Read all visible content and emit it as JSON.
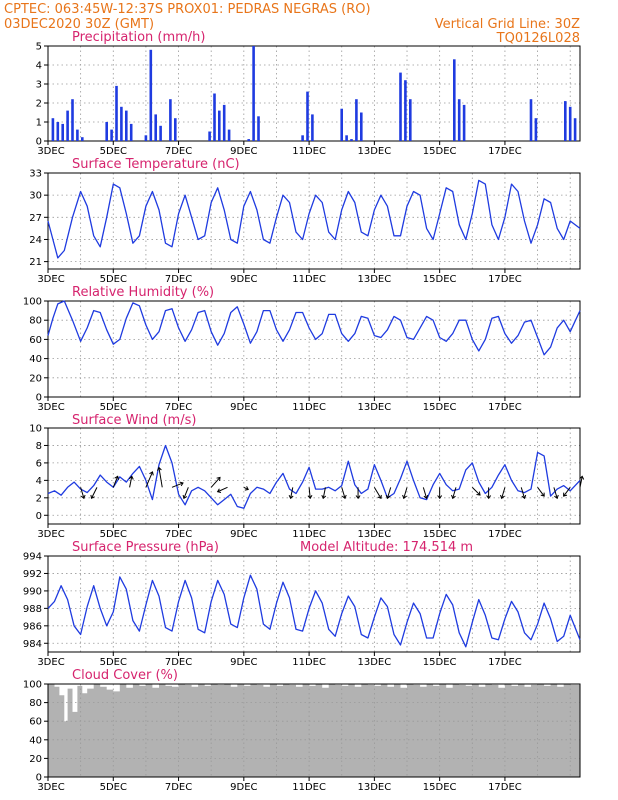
{
  "header": {
    "line1_left": "CPTEC:  063:45W-12:37S  PROX01: PEDRAS NEGRAS (RO)",
    "line2_left": "03DEC2020 30Z (GMT)",
    "line2_right": "Vertical Grid Line: 30Z",
    "line3_right": "TQ0126L028"
  },
  "colors": {
    "header": "#e8751a",
    "panel_title": "#d6246e",
    "series": "#1f3be0",
    "cloud": "#b2b2b2",
    "grid": "#999999"
  },
  "x_axis": {
    "start_label": "3DEC",
    "tick_labels": [
      "3DEC",
      "5DEC",
      "7DEC",
      "9DEC",
      "11DEC",
      "13DEC",
      "15DEC",
      "17DEC"
    ],
    "days_range": [
      0,
      16.3
    ]
  },
  "chart_data": [
    {
      "id": "precip",
      "type": "bar",
      "title": "Precipitation (mm/h)",
      "ylim": [
        0,
        5
      ],
      "yticks": [
        0,
        1,
        2,
        3,
        4,
        5
      ],
      "grid": true,
      "days": [
        0.15,
        0.3,
        0.45,
        0.6,
        0.75,
        0.9,
        1.05,
        1.2,
        1.35,
        1.5,
        1.65,
        1.8,
        1.95,
        2.1,
        2.25,
        2.4,
        2.55,
        2.7,
        2.85,
        3.0,
        3.15,
        3.3,
        3.45,
        3.6,
        3.75,
        3.9,
        4.05,
        4.2,
        4.35,
        4.5,
        4.65,
        4.8,
        4.95,
        5.1,
        5.25,
        5.4,
        5.55,
        5.7,
        5.85,
        6.0,
        6.15,
        6.3,
        6.45,
        6.6,
        6.75,
        6.9,
        7.05,
        7.2,
        7.35,
        7.5,
        7.65,
        7.8,
        7.95,
        8.1,
        8.25,
        8.4,
        8.55,
        8.7,
        8.85,
        9.0,
        9.15,
        9.3,
        9.45,
        9.6,
        9.75,
        9.9,
        10.05,
        10.2,
        10.35,
        10.5,
        10.65,
        10.8,
        10.95,
        11.1,
        11.25,
        11.4,
        11.55,
        11.7,
        11.85,
        12.0,
        12.15,
        12.3,
        12.45,
        12.6,
        12.75,
        12.9,
        13.05,
        13.2,
        13.35,
        13.5,
        13.65,
        13.8,
        13.95,
        14.1,
        14.25,
        14.4,
        14.55,
        14.65,
        14.8,
        14.95,
        15.1,
        15.25,
        15.4,
        15.55,
        15.7,
        15.85,
        16.0,
        16.15
      ],
      "values": [
        1.2,
        1.0,
        0.9,
        1.6,
        2.2,
        0.6,
        0.2,
        0,
        0,
        0,
        0,
        1.0,
        0.6,
        2.9,
        1.8,
        1.6,
        0.9,
        0,
        0,
        0.3,
        4.8,
        1.4,
        0.8,
        0,
        2.2,
        1.2,
        0,
        0,
        0,
        0,
        0,
        0,
        0.5,
        2.5,
        1.6,
        1.9,
        0.6,
        0,
        0,
        0,
        0.1,
        5.0,
        1.3,
        0,
        0,
        0,
        0,
        0,
        0,
        0,
        0,
        0.3,
        2.6,
        1.4,
        0,
        0,
        0,
        0,
        0,
        1.7,
        0.3,
        0.1,
        2.2,
        1.5,
        0,
        0,
        0,
        0,
        0,
        0,
        0,
        3.6,
        3.2,
        2.2,
        0,
        0,
        0,
        0,
        0,
        0,
        0,
        0,
        4.3,
        2.2,
        1.9,
        0,
        0,
        0,
        0,
        0,
        0,
        0,
        0,
        0,
        0,
        0,
        0,
        0,
        2.2,
        1.2,
        0,
        0,
        0,
        0,
        0,
        2.1,
        1.8,
        1.2
      ]
    },
    {
      "id": "temp",
      "type": "line",
      "title": "Surface Temperature (nC)",
      "ylim": [
        20,
        33
      ],
      "yticks": [
        21,
        24,
        27,
        30,
        33
      ],
      "grid": true,
      "days": [
        0,
        0.15,
        0.3,
        0.5,
        0.75,
        1.0,
        1.2,
        1.4,
        1.6,
        1.8,
        2.0,
        2.2,
        2.4,
        2.6,
        2.8,
        3.0,
        3.2,
        3.4,
        3.6,
        3.8,
        4.0,
        4.2,
        4.4,
        4.6,
        4.8,
        5.0,
        5.2,
        5.4,
        5.6,
        5.8,
        6.0,
        6.2,
        6.4,
        6.6,
        6.8,
        7.0,
        7.2,
        7.4,
        7.6,
        7.8,
        8.0,
        8.2,
        8.4,
        8.6,
        8.8,
        9.0,
        9.2,
        9.4,
        9.6,
        9.8,
        10.0,
        10.2,
        10.4,
        10.6,
        10.8,
        11.0,
        11.2,
        11.4,
        11.6,
        11.8,
        12.0,
        12.2,
        12.4,
        12.6,
        12.8,
        13.0,
        13.2,
        13.4,
        13.6,
        13.8,
        14.0,
        14.2,
        14.4,
        14.6,
        14.8,
        15.0,
        15.2,
        15.4,
        15.6,
        15.8,
        16.0,
        16.3
      ],
      "values": [
        26.5,
        24.0,
        21.5,
        22.5,
        27.0,
        30.5,
        28.5,
        24.5,
        23.0,
        27.0,
        31.5,
        31.0,
        27.5,
        23.5,
        24.5,
        28.5,
        30.5,
        28.0,
        23.5,
        23.0,
        27.5,
        30.0,
        27.0,
        24.0,
        24.5,
        29.0,
        31.0,
        28.0,
        24.0,
        23.5,
        28.5,
        30.5,
        28.0,
        24.0,
        23.5,
        27.0,
        30.0,
        29.0,
        25.0,
        24.0,
        27.5,
        30.0,
        29.0,
        25.0,
        24.0,
        28.0,
        30.5,
        29.0,
        25.0,
        24.5,
        28.0,
        30.0,
        28.5,
        24.5,
        24.5,
        28.5,
        30.5,
        30.0,
        25.5,
        24.0,
        27.5,
        31.0,
        30.5,
        26.0,
        24.0,
        27.5,
        32.0,
        31.5,
        26.0,
        24.0,
        27.0,
        31.5,
        30.5,
        26.5,
        23.5,
        26.0,
        29.5,
        29.0,
        25.5,
        24.0,
        26.5,
        25.5
      ]
    },
    {
      "id": "rh",
      "type": "line",
      "title": "Relative Humidity (%)",
      "ylim": [
        0,
        100
      ],
      "yticks": [
        0,
        20,
        40,
        60,
        80,
        100
      ],
      "grid": true,
      "days": [
        0,
        0.15,
        0.3,
        0.5,
        0.75,
        1.0,
        1.2,
        1.4,
        1.6,
        1.8,
        2.0,
        2.2,
        2.4,
        2.6,
        2.8,
        3.0,
        3.2,
        3.4,
        3.6,
        3.8,
        4.0,
        4.2,
        4.4,
        4.6,
        4.8,
        5.0,
        5.2,
        5.4,
        5.6,
        5.8,
        6.0,
        6.2,
        6.4,
        6.6,
        6.8,
        7.0,
        7.2,
        7.4,
        7.6,
        7.8,
        8.0,
        8.2,
        8.4,
        8.6,
        8.8,
        9.0,
        9.2,
        9.4,
        9.6,
        9.8,
        10.0,
        10.2,
        10.4,
        10.6,
        10.8,
        11.0,
        11.2,
        11.4,
        11.6,
        11.8,
        12.0,
        12.2,
        12.4,
        12.6,
        12.8,
        13.0,
        13.2,
        13.4,
        13.6,
        13.8,
        14.0,
        14.2,
        14.4,
        14.6,
        14.8,
        15.0,
        15.2,
        15.4,
        15.6,
        15.8,
        16.0,
        16.3
      ],
      "values": [
        64,
        82,
        97,
        100,
        80,
        58,
        72,
        90,
        88,
        70,
        55,
        60,
        82,
        98,
        95,
        75,
        60,
        68,
        90,
        92,
        72,
        58,
        70,
        88,
        90,
        68,
        54,
        66,
        88,
        94,
        76,
        56,
        68,
        90,
        90,
        70,
        58,
        70,
        88,
        88,
        72,
        60,
        66,
        86,
        86,
        66,
        58,
        66,
        84,
        82,
        64,
        62,
        70,
        84,
        80,
        62,
        60,
        72,
        84,
        80,
        62,
        58,
        66,
        80,
        80,
        60,
        48,
        60,
        82,
        84,
        66,
        56,
        64,
        78,
        80,
        62,
        44,
        52,
        72,
        80,
        68,
        90
      ]
    },
    {
      "id": "wind",
      "type": "line",
      "title": "Surface Wind (m/s)",
      "ylim": [
        -1,
        10
      ],
      "yticks": [
        0,
        2,
        4,
        6,
        8,
        10
      ],
      "grid": true,
      "days": [
        0,
        0.2,
        0.4,
        0.6,
        0.8,
        1.0,
        1.2,
        1.4,
        1.6,
        1.8,
        2.0,
        2.2,
        2.4,
        2.6,
        2.8,
        3.0,
        3.2,
        3.4,
        3.6,
        3.8,
        4.0,
        4.2,
        4.4,
        4.6,
        4.8,
        5.0,
        5.2,
        5.4,
        5.6,
        5.8,
        6.0,
        6.2,
        6.4,
        6.6,
        6.8,
        7.0,
        7.2,
        7.4,
        7.6,
        7.8,
        8.0,
        8.2,
        8.4,
        8.6,
        8.8,
        9.0,
        9.2,
        9.4,
        9.6,
        9.8,
        10.0,
        10.2,
        10.4,
        10.6,
        10.8,
        11.0,
        11.2,
        11.4,
        11.6,
        11.8,
        12.0,
        12.2,
        12.4,
        12.6,
        12.8,
        13.0,
        13.2,
        13.4,
        13.6,
        13.8,
        14.0,
        14.2,
        14.4,
        14.6,
        14.8,
        15.0,
        15.2,
        15.4,
        15.6,
        15.8,
        16.0,
        16.3
      ],
      "values": [
        2.5,
        2.8,
        2.3,
        3.2,
        3.8,
        3.0,
        2.6,
        3.4,
        4.6,
        3.8,
        3.2,
        4.4,
        3.8,
        4.8,
        5.6,
        4.0,
        1.8,
        5.8,
        8.0,
        6.0,
        2.4,
        1.2,
        2.8,
        3.2,
        2.8,
        2.0,
        1.2,
        1.8,
        2.4,
        1.0,
        0.8,
        2.5,
        3.2,
        3.0,
        2.5,
        3.8,
        4.8,
        3.0,
        2.5,
        3.8,
        5.5,
        3.0,
        3.0,
        3.2,
        2.8,
        3.4,
        6.2,
        3.5,
        2.5,
        3.0,
        5.8,
        4.0,
        2.0,
        2.5,
        4.2,
        6.2,
        4.0,
        2.0,
        1.8,
        3.5,
        4.8,
        3.5,
        2.8,
        3.0,
        5.2,
        6.0,
        3.8,
        2.5,
        3.2,
        4.6,
        5.8,
        4.0,
        2.8,
        2.6,
        3.0,
        7.2,
        6.8,
        2.2,
        3.0,
        3.4,
        2.8,
        4.0
      ],
      "vectors": [
        {
          "day": 1.0,
          "u": 0.3,
          "v": -1.0
        },
        {
          "day": 1.5,
          "u": -0.5,
          "v": -1.0
        },
        {
          "day": 2.0,
          "u": 0.4,
          "v": 1.0
        },
        {
          "day": 2.5,
          "u": 0.2,
          "v": 1.0
        },
        {
          "day": 3.0,
          "u": 0.6,
          "v": 1.4
        },
        {
          "day": 3.5,
          "u": -0.3,
          "v": 1.8
        },
        {
          "day": 3.8,
          "u": 1.0,
          "v": 0.4
        },
        {
          "day": 4.3,
          "u": -0.4,
          "v": -1.0
        },
        {
          "day": 5.0,
          "u": 0.8,
          "v": 0.9
        },
        {
          "day": 5.5,
          "u": -0.9,
          "v": -0.4
        },
        {
          "day": 6.0,
          "u": 0.4,
          "v": -0.2
        },
        {
          "day": 7.5,
          "u": -0.2,
          "v": -1.0
        },
        {
          "day": 8.0,
          "u": 0.1,
          "v": -1.0
        },
        {
          "day": 8.5,
          "u": -0.2,
          "v": -1.0
        },
        {
          "day": 9.0,
          "u": 0.3,
          "v": -1.0
        },
        {
          "day": 9.5,
          "u": 0.0,
          "v": -1.0
        },
        {
          "day": 10.0,
          "u": 0.6,
          "v": -1.0
        },
        {
          "day": 10.5,
          "u": -0.3,
          "v": -1.0
        },
        {
          "day": 11.0,
          "u": -0.3,
          "v": -1.0
        },
        {
          "day": 11.5,
          "u": 0.3,
          "v": -1.0
        },
        {
          "day": 12.0,
          "u": 0.0,
          "v": -1.0
        },
        {
          "day": 12.5,
          "u": -0.3,
          "v": -1.0
        },
        {
          "day": 13.0,
          "u": 0.7,
          "v": -0.7
        },
        {
          "day": 13.5,
          "u": 0.0,
          "v": -1.0
        },
        {
          "day": 14.0,
          "u": -0.3,
          "v": -1.0
        },
        {
          "day": 14.5,
          "u": 0.3,
          "v": -1.0
        },
        {
          "day": 15.0,
          "u": 0.6,
          "v": -0.8
        },
        {
          "day": 15.5,
          "u": 0.3,
          "v": -1.0
        },
        {
          "day": 16.0,
          "u": -0.6,
          "v": -0.8
        },
        {
          "day": 16.3,
          "u": 0.2,
          "v": 1.0
        }
      ]
    },
    {
      "id": "pressure",
      "type": "line",
      "title": "Surface Pressure (hPa)",
      "subtitle": "Model Altitude: 174.514  m",
      "ylim": [
        983,
        994
      ],
      "yticks": [
        984,
        986,
        988,
        990,
        992,
        994
      ],
      "grid": true,
      "days": [
        0,
        0.2,
        0.4,
        0.6,
        0.8,
        1.0,
        1.2,
        1.4,
        1.6,
        1.8,
        2.0,
        2.2,
        2.4,
        2.6,
        2.8,
        3.0,
        3.2,
        3.4,
        3.6,
        3.8,
        4.0,
        4.2,
        4.4,
        4.6,
        4.8,
        5.0,
        5.2,
        5.4,
        5.6,
        5.8,
        6.0,
        6.2,
        6.4,
        6.6,
        6.8,
        7.0,
        7.2,
        7.4,
        7.6,
        7.8,
        8.0,
        8.2,
        8.4,
        8.6,
        8.8,
        9.0,
        9.2,
        9.4,
        9.6,
        9.8,
        10.0,
        10.2,
        10.4,
        10.6,
        10.8,
        11.0,
        11.2,
        11.4,
        11.6,
        11.8,
        12.0,
        12.2,
        12.4,
        12.6,
        12.8,
        13.0,
        13.2,
        13.4,
        13.6,
        13.8,
        14.0,
        14.2,
        14.4,
        14.6,
        14.8,
        15.0,
        15.2,
        15.4,
        15.6,
        15.8,
        16.0,
        16.3
      ],
      "values": [
        988.0,
        988.8,
        990.6,
        989.0,
        986.0,
        985.0,
        988.2,
        990.6,
        988.0,
        986.0,
        987.6,
        991.6,
        990.2,
        986.6,
        985.4,
        988.4,
        991.2,
        989.4,
        985.8,
        985.4,
        988.8,
        991.2,
        989.2,
        985.6,
        985.2,
        988.8,
        991.2,
        989.6,
        986.2,
        985.8,
        989.2,
        991.8,
        990.2,
        986.2,
        985.6,
        988.6,
        991.0,
        989.2,
        985.6,
        985.4,
        988.0,
        990.0,
        988.6,
        985.6,
        984.8,
        987.4,
        989.4,
        988.2,
        985.0,
        984.6,
        987.0,
        989.2,
        988.2,
        985.0,
        983.8,
        986.4,
        988.6,
        987.4,
        984.6,
        984.6,
        987.4,
        989.6,
        988.4,
        985.2,
        983.6,
        986.4,
        989.0,
        987.2,
        984.6,
        984.4,
        986.8,
        988.8,
        987.6,
        985.2,
        984.4,
        986.2,
        988.6,
        986.8,
        984.2,
        984.8,
        987.2,
        984.4
      ]
    },
    {
      "id": "cloud",
      "type": "area",
      "title": "Cloud Cover (%)",
      "ylim": [
        0,
        100
      ],
      "yticks": [
        0,
        20,
        40,
        60,
        80,
        100
      ],
      "grid": true,
      "days": [
        0,
        0.2,
        0.35,
        0.5,
        0.6,
        0.75,
        0.9,
        1.05,
        1.2,
        1.4,
        1.6,
        1.8,
        2.0,
        2.2,
        2.4,
        2.6,
        2.8,
        3.0,
        3.2,
        3.4,
        3.6,
        3.8,
        4.0,
        4.2,
        4.4,
        4.6,
        4.8,
        5.0,
        5.2,
        5.4,
        5.6,
        5.8,
        6.0,
        6.2,
        6.4,
        6.6,
        6.8,
        7.0,
        7.2,
        7.4,
        7.6,
        7.8,
        8.0,
        8.2,
        8.4,
        8.6,
        8.8,
        9.0,
        9.2,
        9.4,
        9.6,
        9.8,
        10.0,
        10.2,
        10.4,
        10.6,
        10.8,
        11.0,
        11.2,
        11.4,
        11.6,
        11.8,
        12.0,
        12.2,
        12.4,
        12.6,
        12.8,
        13.0,
        13.2,
        13.4,
        13.6,
        13.8,
        14.0,
        14.2,
        14.4,
        14.6,
        14.8,
        15.0,
        15.2,
        15.4,
        15.6,
        15.8,
        16.0,
        16.3
      ],
      "values": [
        100,
        97,
        88,
        60,
        95,
        70,
        98,
        90,
        95,
        100,
        97,
        94,
        92,
        100,
        96,
        100,
        98,
        100,
        96,
        100,
        98,
        97,
        100,
        99,
        97,
        100,
        98,
        100,
        99,
        100,
        97,
        100,
        98,
        100,
        99,
        97,
        100,
        98,
        100,
        99,
        97,
        100,
        98,
        100,
        96,
        100,
        99,
        98,
        100,
        97,
        100,
        99,
        98,
        100,
        97,
        100,
        96,
        100,
        99,
        97,
        100,
        98,
        100,
        96,
        100,
        99,
        98,
        100,
        97,
        100,
        99,
        96,
        100,
        98,
        100,
        97,
        99,
        100,
        98,
        100,
        97,
        100,
        99,
        98
      ]
    }
  ]
}
